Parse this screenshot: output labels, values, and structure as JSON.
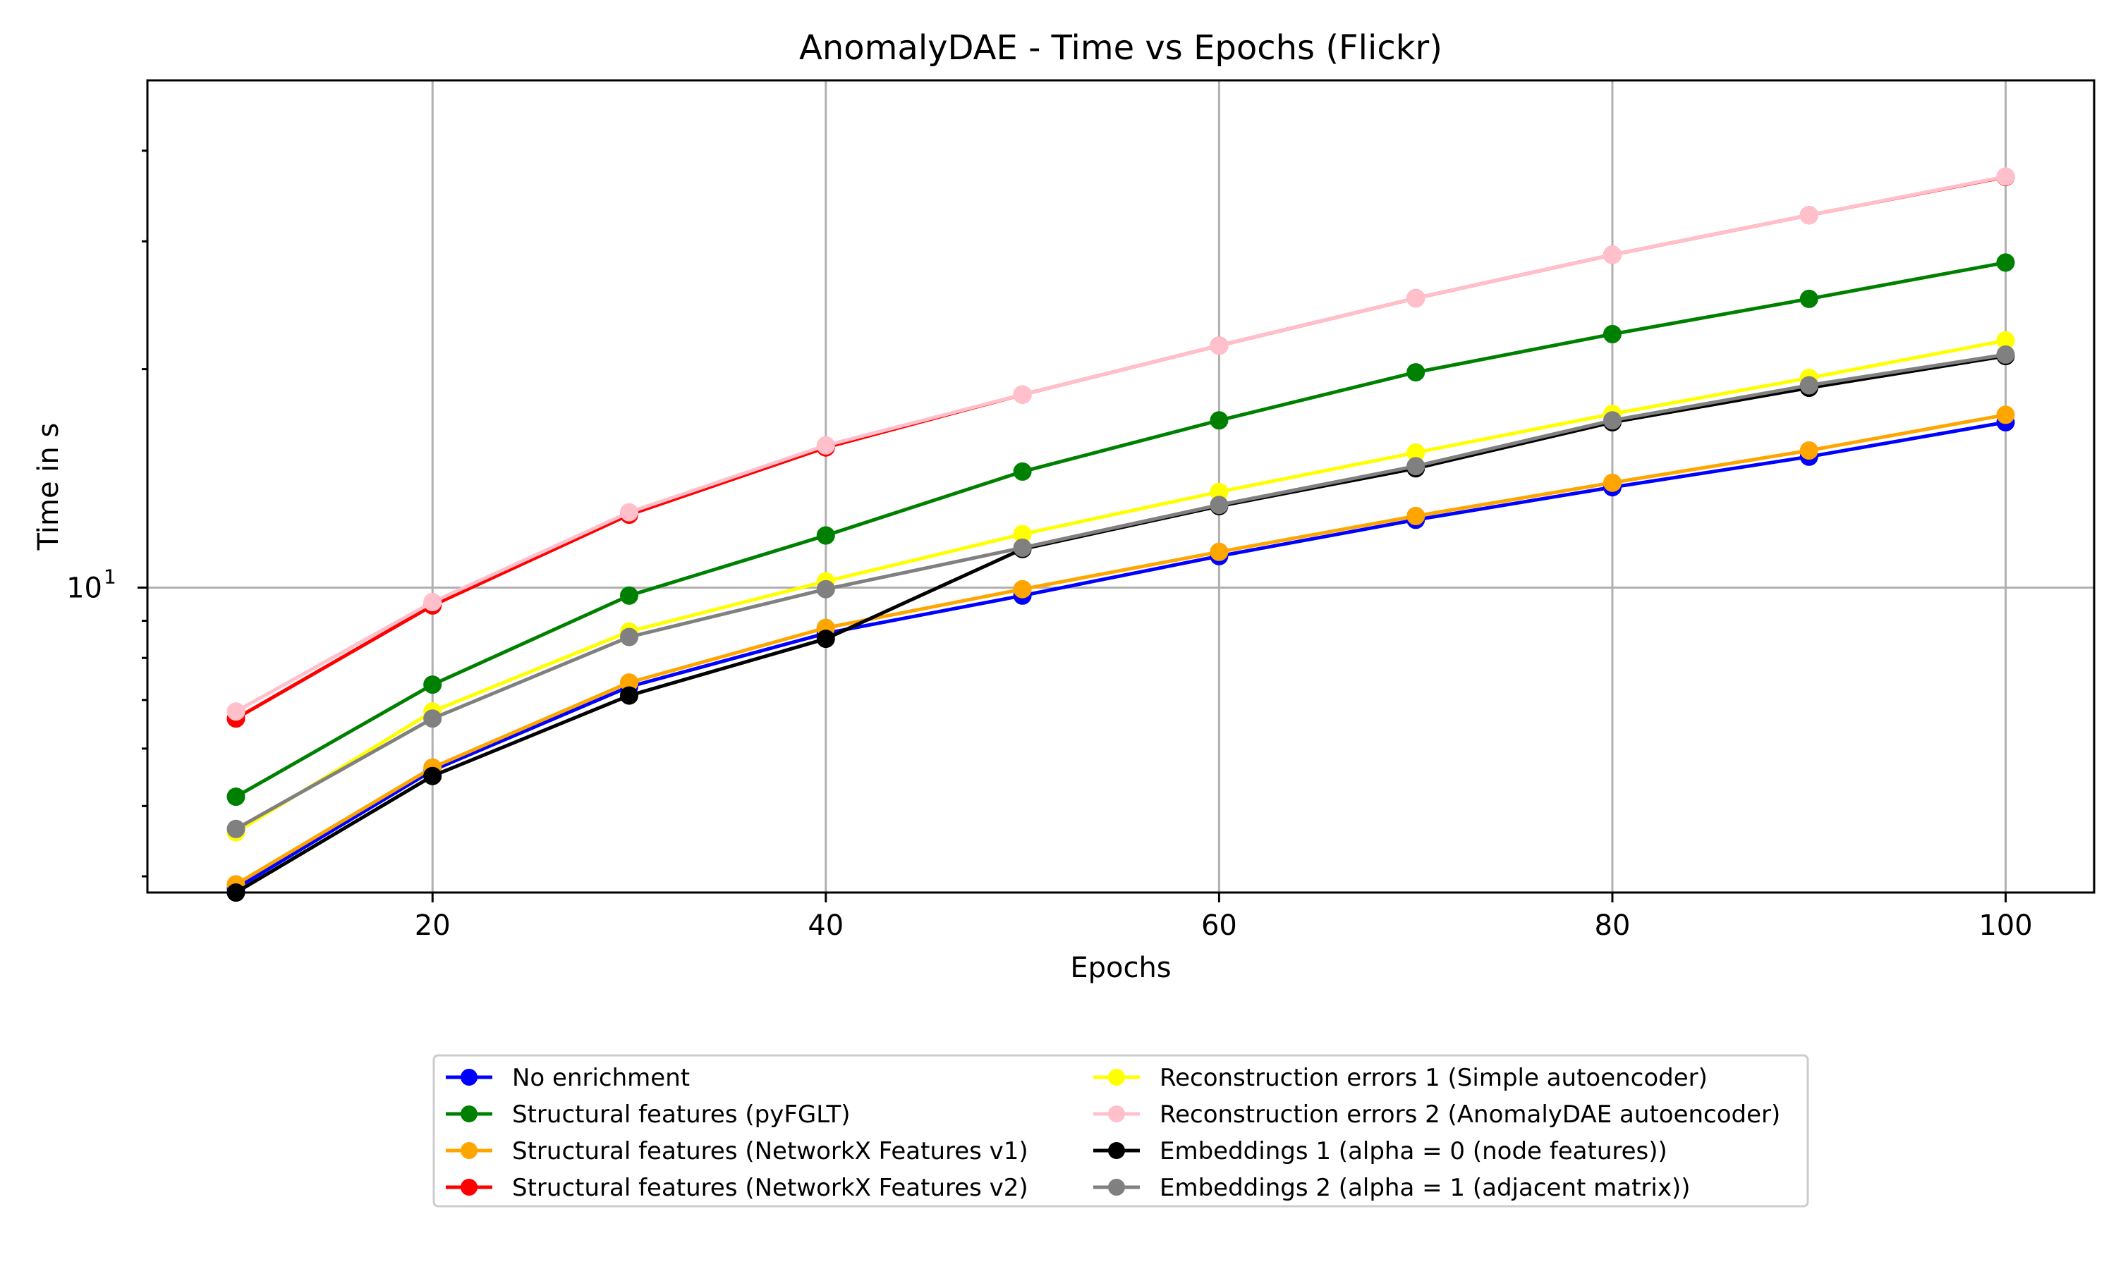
{
  "chart_data": {
    "type": "line",
    "title": "AnomalyDAE - Time vs Epochs (Flickr)",
    "xlabel": "Epochs",
    "ylabel": "Time in s",
    "x_ticks": [
      20,
      40,
      60,
      80,
      100
    ],
    "y_scale": "log",
    "y_tick_labels": [
      {
        "value": 10,
        "label": "10",
        "exponent": "1"
      }
    ],
    "xlim": [
      5.5,
      104.5
    ],
    "ylim": [
      3.8,
      50
    ],
    "grid": true,
    "legend_position": "bottom-center",
    "x": [
      10,
      20,
      30,
      40,
      50,
      60,
      70,
      80,
      90,
      100
    ],
    "series": [
      {
        "name": "No enrichment",
        "color": "#0000ff",
        "values": [
          3.85,
          5.6,
          7.3,
          8.65,
          9.75,
          11.05,
          12.4,
          13.75,
          15.15,
          16.9
        ]
      },
      {
        "name": "Structural features (pyFGLT)",
        "color": "#008000",
        "values": [
          5.15,
          7.35,
          9.75,
          11.8,
          14.45,
          17.0,
          19.8,
          22.35,
          25.0,
          28.05
        ]
      },
      {
        "name": "Structural features (NetworkX Features v1)",
        "color": "#ffa500",
        "values": [
          3.9,
          5.65,
          7.4,
          8.8,
          9.95,
          11.2,
          12.55,
          13.95,
          15.45,
          17.3
        ]
      },
      {
        "name": "Structural features (NetworkX Features v2)",
        "color": "#ff0000",
        "values": [
          6.6,
          9.45,
          12.6,
          15.6,
          18.45,
          21.55,
          25.05,
          28.75,
          32.6,
          36.8
        ]
      },
      {
        "name": "Reconstruction errors 1 (Simple autoencoder)",
        "color": "#ffff00",
        "values": [
          4.6,
          6.75,
          8.7,
          10.2,
          11.85,
          13.55,
          15.35,
          17.35,
          19.45,
          21.9
        ]
      },
      {
        "name": "Reconstruction errors 2 (AnomalyDAE autoencoder)",
        "color": "#ffc0cb",
        "values": [
          6.75,
          9.55,
          12.7,
          15.7,
          18.45,
          21.55,
          25.05,
          28.75,
          32.6,
          36.85
        ]
      },
      {
        "name": "Embeddings 1 (alpha = 0 (node features))",
        "color": "#000000",
        "values": [
          3.8,
          5.5,
          7.1,
          8.5,
          11.3,
          12.95,
          14.6,
          16.9,
          18.85,
          20.85
        ]
      },
      {
        "name": "Embeddings 2 (alpha = 1 (adjacent matrix))",
        "color": "#808080",
        "values": [
          4.65,
          6.6,
          8.55,
          9.95,
          11.35,
          13.0,
          14.7,
          17.0,
          19.0,
          20.95
        ]
      }
    ]
  }
}
